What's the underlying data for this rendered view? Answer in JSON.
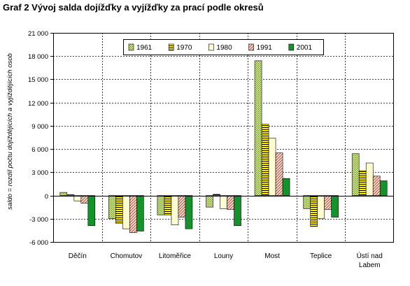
{
  "chart_data": {
    "type": "bar",
    "title": "Graf 2  Vývoj salda dojížďky a vyjížďky za prací podle okresů",
    "ylabel": "saldo = rozdíl počtu dojíždějících a vyjíždějících osob",
    "xlabel": "",
    "ylim": [
      -6000,
      21000
    ],
    "y_ticks": [
      21000,
      18000,
      15000,
      12000,
      9000,
      6000,
      3000,
      0,
      -3000,
      -6000
    ],
    "y_tick_labels": [
      "21 000",
      "18 000",
      "15 000",
      "12 000",
      "9 000",
      "6 000",
      "3 000",
      "0",
      "-3 000",
      "-6 000"
    ],
    "grid": true,
    "legend_position": "top-right",
    "categories": [
      {
        "lines": [
          "Děčín"
        ]
      },
      {
        "lines": [
          "Chomutov"
        ]
      },
      {
        "lines": [
          "Litoměřice"
        ]
      },
      {
        "lines": [
          "Louny"
        ]
      },
      {
        "lines": [
          "Most"
        ]
      },
      {
        "lines": [
          "Teplice"
        ]
      },
      {
        "lines": [
          "Ústí nad",
          "Labem"
        ]
      }
    ],
    "series": [
      {
        "name": "1961",
        "pattern": "dots-green",
        "values": [
          400,
          -3000,
          -2500,
          -1500,
          17400,
          -1700,
          5400
        ]
      },
      {
        "name": "1970",
        "pattern": "hstripes-yellow",
        "values": [
          100,
          -3600,
          -2500,
          150,
          9200,
          -4000,
          3200
        ]
      },
      {
        "name": "1980",
        "pattern": "solid-cream",
        "values": [
          -700,
          -4300,
          -3800,
          -1700,
          7400,
          -3000,
          4200
        ]
      },
      {
        "name": "1991",
        "pattern": "diag-salmon",
        "values": [
          -1000,
          -4800,
          -2800,
          -1800,
          5500,
          -1800,
          2500
        ]
      },
      {
        "name": "2001",
        "pattern": "solid-green",
        "values": [
          -3900,
          -4600,
          -4300,
          -3900,
          2200,
          -2800,
          1900
        ]
      }
    ]
  }
}
